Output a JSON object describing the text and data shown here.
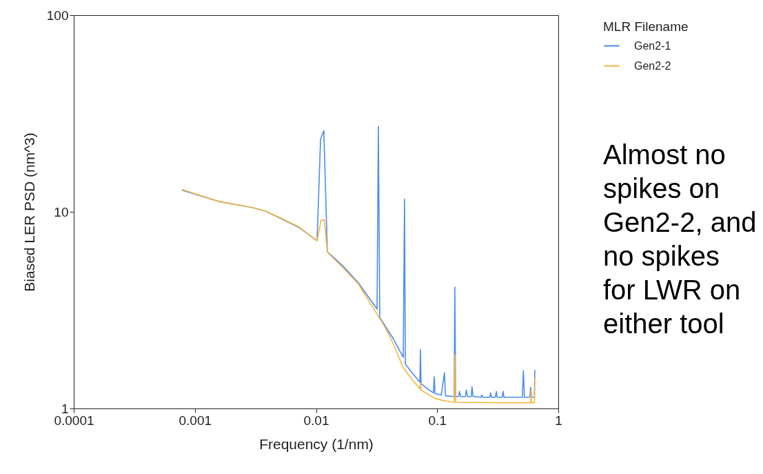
{
  "chart_data": {
    "type": "line",
    "log": "xy",
    "xlabel": "Frequency (1/nm)",
    "ylabel": "Biased LER PSD (nm^3)",
    "legend_title": "MLR Filename",
    "legend": "top right",
    "grid": false,
    "xlim": [
      0.0001,
      1
    ],
    "xticks": [
      0.0001,
      0.001,
      0.01,
      0.1,
      1
    ],
    "ylim": [
      1,
      100
    ],
    "yticks": [
      1,
      10,
      100
    ],
    "annotations": [
      "Almost no spikes on Gen2-2, and no spikes for LWR on either tool"
    ],
    "series": [
      {
        "name": "Gen2-1",
        "color": "#4a8cef",
        "x": [
          0.00078,
          0.00157,
          0.00301,
          0.0038,
          0.0053,
          0.0073,
          0.0102,
          0.0109,
          0.0116,
          0.0124,
          0.0132,
          0.0172,
          0.0224,
          0.0319,
          0.0327,
          0.0336,
          0.0431,
          0.0525,
          0.0538,
          0.0546,
          0.0638,
          0.072,
          0.0728,
          0.0736,
          0.083,
          0.093,
          0.0946,
          0.096,
          0.108,
          0.115,
          0.117,
          0.138,
          0.14,
          0.142,
          0.15,
          0.153,
          0.156,
          0.171,
          0.174,
          0.178,
          0.191,
          0.194,
          0.198,
          0.229,
          0.234,
          0.238,
          0.271,
          0.276,
          0.281,
          0.302,
          0.308,
          0.313,
          0.344,
          0.35,
          0.356,
          0.505,
          0.515,
          0.525,
          0.582,
          0.592,
          0.602,
          0.635,
          0.64
        ],
        "values": [
          12.9,
          11.3,
          10.5,
          10.1,
          9.15,
          8.3,
          7.12,
          23.4,
          25.9,
          6.26,
          6.06,
          5.2,
          4.35,
          3.2,
          27.2,
          2.9,
          2.28,
          1.82,
          11.6,
          1.68,
          1.49,
          1.36,
          1.99,
          1.34,
          1.26,
          1.2,
          1.45,
          1.19,
          1.17,
          1.52,
          1.16,
          1.15,
          4.14,
          1.15,
          1.15,
          1.22,
          1.15,
          1.15,
          1.24,
          1.15,
          1.15,
          1.29,
          1.15,
          1.14,
          1.17,
          1.14,
          1.14,
          1.2,
          1.14,
          1.14,
          1.22,
          1.14,
          1.14,
          1.22,
          1.14,
          1.14,
          1.56,
          1.14,
          1.14,
          1.28,
          1.14,
          1.14,
          1.57
        ]
      },
      {
        "name": "Gen2-2",
        "color": "#f7b440",
        "x": [
          0.00078,
          0.00157,
          0.00301,
          0.0038,
          0.0053,
          0.0073,
          0.0102,
          0.011,
          0.0117,
          0.0124,
          0.0132,
          0.0172,
          0.0224,
          0.031,
          0.0378,
          0.0431,
          0.0525,
          0.0638,
          0.072,
          0.0728,
          0.0736,
          0.0946,
          0.11,
          0.138,
          0.14,
          0.142,
          0.3,
          0.592,
          0.596,
          0.6,
          0.635,
          0.64
        ],
        "values": [
          13.0,
          11.3,
          10.5,
          10.1,
          9.2,
          8.35,
          7.12,
          9.08,
          9.1,
          6.26,
          6.0,
          5.1,
          4.29,
          3.11,
          2.54,
          2.15,
          1.61,
          1.37,
          1.26,
          1.35,
          1.24,
          1.13,
          1.1,
          1.075,
          1.88,
          1.075,
          1.07,
          1.07,
          1.24,
          1.07,
          1.07,
          1.43
        ]
      }
    ]
  }
}
